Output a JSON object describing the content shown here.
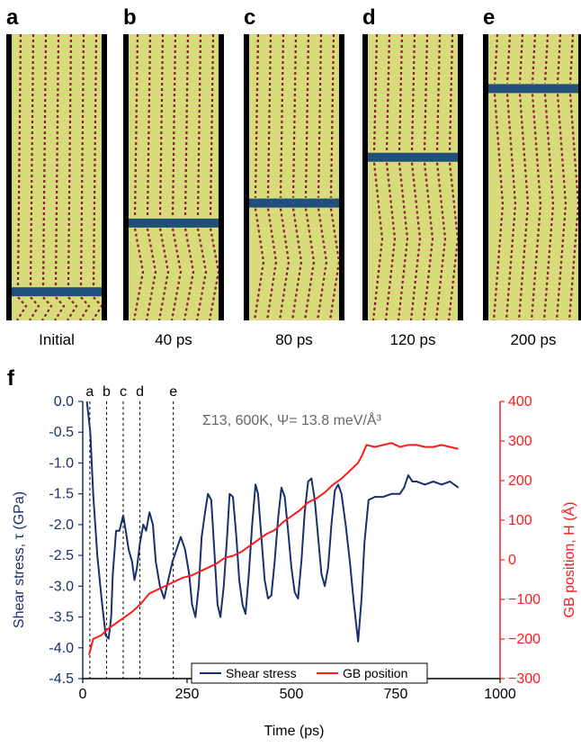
{
  "panels": [
    {
      "letter": "a",
      "time": "Initial",
      "gb": 0.9
    },
    {
      "letter": "b",
      "time": "40 ps",
      "gb": 0.66
    },
    {
      "letter": "c",
      "time": "80 ps",
      "gb": 0.59
    },
    {
      "letter": "d",
      "time": "120 ps",
      "gb": 0.43
    },
    {
      "letter": "e",
      "time": "200 ps",
      "gb": 0.19
    }
  ],
  "colors": {
    "matrix": "#d8db7a",
    "boundary": "#1f4f7a",
    "dislocation": "#8b1a3c",
    "stress": "#1a2f6b",
    "gb": "#ff1a1a"
  },
  "chart_data": {
    "type": "line",
    "panel_letter": "f",
    "annotation": "Σ13, 600K, Ψ= 13.8 meV/Å³",
    "xlabel": "Time (ps)",
    "ylabel_left": "Shear stress, τ (GPa)",
    "ylabel_right": "GB position, H (Å)",
    "xlim": [
      0,
      1000
    ],
    "ylim_left": [
      -4.5,
      0.0
    ],
    "ylim_right": [
      -300,
      400
    ],
    "xticks": [
      "0",
      "250",
      "500",
      "750",
      "1000"
    ],
    "yticks_left": [
      "0.0",
      "-0.5",
      "-1.0",
      "-1.5",
      "-2.0",
      "-2.5",
      "-3.0",
      "-3.5",
      "-4.0",
      "-4.5"
    ],
    "yticks_right": [
      "400",
      "300",
      "200",
      "100",
      "0",
      "−100",
      "−200",
      "−300"
    ],
    "markers": [
      {
        "label": "a",
        "x": 17
      },
      {
        "label": "b",
        "x": 57
      },
      {
        "label": "c",
        "x": 97
      },
      {
        "label": "d",
        "x": 137
      },
      {
        "label": "e",
        "x": 217
      }
    ],
    "series": [
      {
        "name": "Shear stress",
        "axis": "left",
        "x": [
          10,
          18,
          25,
          35,
          45,
          55,
          62,
          68,
          72,
          80,
          88,
          97,
          103,
          110,
          118,
          124,
          130,
          137,
          145,
          152,
          160,
          168,
          175,
          185,
          195,
          205,
          215,
          225,
          235,
          245,
          255,
          262,
          270,
          278,
          285,
          293,
          300,
          308,
          316,
          323,
          330,
          338,
          346,
          352,
          360,
          368,
          375,
          383,
          390,
          398,
          406,
          414,
          420,
          428,
          436,
          444,
          452,
          460,
          468,
          476,
          484,
          492,
          500,
          508,
          516,
          524,
          532,
          540,
          548,
          556,
          564,
          572,
          580,
          588,
          596,
          604,
          612,
          620,
          630,
          640,
          650,
          660,
          668,
          675,
          685,
          700,
          720,
          740,
          760,
          770,
          780,
          790,
          800,
          820,
          840,
          860,
          880,
          900
        ],
        "values": [
          0.0,
          -0.5,
          -1.5,
          -2.5,
          -3.2,
          -3.8,
          -3.85,
          -3.5,
          -2.8,
          -2.1,
          -2.1,
          -1.85,
          -2.1,
          -2.4,
          -2.6,
          -2.9,
          -2.7,
          -2.3,
          -2.0,
          -2.1,
          -1.8,
          -2.0,
          -2.6,
          -3.0,
          -3.2,
          -2.9,
          -2.6,
          -2.4,
          -2.2,
          -2.4,
          -2.8,
          -3.3,
          -3.5,
          -3.0,
          -2.2,
          -1.8,
          -1.5,
          -1.6,
          -2.5,
          -3.3,
          -3.5,
          -3.0,
          -2.2,
          -1.5,
          -1.55,
          -2.2,
          -2.9,
          -3.3,
          -3.45,
          -2.8,
          -2.0,
          -1.35,
          -1.5,
          -2.2,
          -2.9,
          -3.2,
          -3.15,
          -2.6,
          -1.9,
          -1.4,
          -1.55,
          -2.1,
          -2.7,
          -3.1,
          -3.2,
          -2.6,
          -1.8,
          -1.3,
          -1.25,
          -1.6,
          -2.2,
          -2.8,
          -3.0,
          -2.7,
          -2.0,
          -1.45,
          -1.35,
          -1.5,
          -2.0,
          -2.6,
          -3.3,
          -3.9,
          -3.2,
          -2.3,
          -1.6,
          -1.55,
          -1.55,
          -1.5,
          -1.5,
          -1.4,
          -1.2,
          -1.3,
          -1.3,
          -1.35,
          -1.3,
          -1.35,
          -1.3,
          -1.4
        ]
      },
      {
        "name": "GB position",
        "axis": "right",
        "x": [
          15,
          25,
          45,
          60,
          80,
          100,
          120,
          140,
          160,
          180,
          200,
          220,
          240,
          260,
          280,
          300,
          320,
          340,
          360,
          380,
          400,
          420,
          440,
          460,
          480,
          500,
          520,
          540,
          560,
          580,
          600,
          620,
          640,
          660,
          670,
          680,
          700,
          720,
          740,
          760,
          780,
          800,
          820,
          840,
          860,
          880,
          900
        ],
        "values": [
          -240,
          -200,
          -190,
          -175,
          -160,
          -145,
          -130,
          -110,
          -85,
          -75,
          -65,
          -55,
          -45,
          -40,
          -30,
          -20,
          -10,
          5,
          10,
          20,
          35,
          50,
          65,
          75,
          95,
          110,
          125,
          145,
          155,
          170,
          190,
          205,
          225,
          245,
          265,
          290,
          285,
          290,
          295,
          285,
          290,
          290,
          285,
          285,
          290,
          285,
          280
        ]
      }
    ]
  }
}
